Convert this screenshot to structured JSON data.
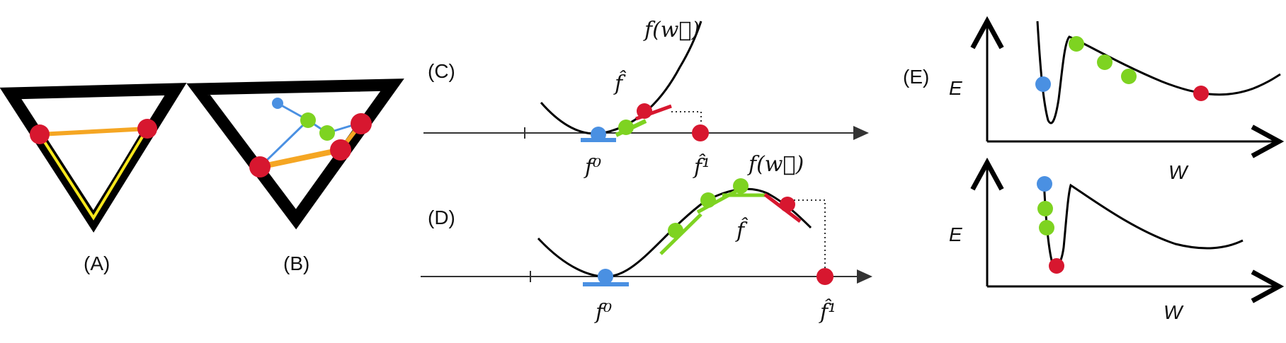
{
  "panels": {
    "A": {
      "label": "(A)"
    },
    "B": {
      "label": "(B)"
    },
    "C": {
      "label": "(C)",
      "f_w": "f(w⃗)",
      "f_hat": "f̂",
      "f0": "f⁰",
      "f1": "f̂¹"
    },
    "D": {
      "label": "(D)",
      "f_w": "f(w⃗)",
      "f_hat": "f̂",
      "f0": "f⁰",
      "f1": "f̂¹"
    },
    "E": {
      "label": "(E)",
      "top_ylabel": "E",
      "top_xlabel": "W",
      "bottom_ylabel": "E",
      "bottom_xlabel": "W"
    }
  },
  "colors": {
    "red": "#d7172f",
    "green": "#7ed321",
    "blue": "#4a90e2",
    "orange": "#f5a623",
    "yellow": "#f8e71c",
    "black": "#000000"
  }
}
